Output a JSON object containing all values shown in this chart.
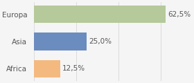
{
  "categories": [
    "Africa",
    "Asia",
    "Europa"
  ],
  "values": [
    12.5,
    25.0,
    62.5
  ],
  "bar_colors": [
    "#f4b97f",
    "#6b8cbe",
    "#b5c99a"
  ],
  "labels": [
    "12,5%",
    "25,0%",
    "62,5%"
  ],
  "background_color": "#f5f5f5",
  "xlim": [
    0,
    75
  ],
  "bar_height": 0.65,
  "label_fontsize": 7.5,
  "tick_fontsize": 7.5,
  "grid_color": "#d8d8d8",
  "text_color": "#555555"
}
